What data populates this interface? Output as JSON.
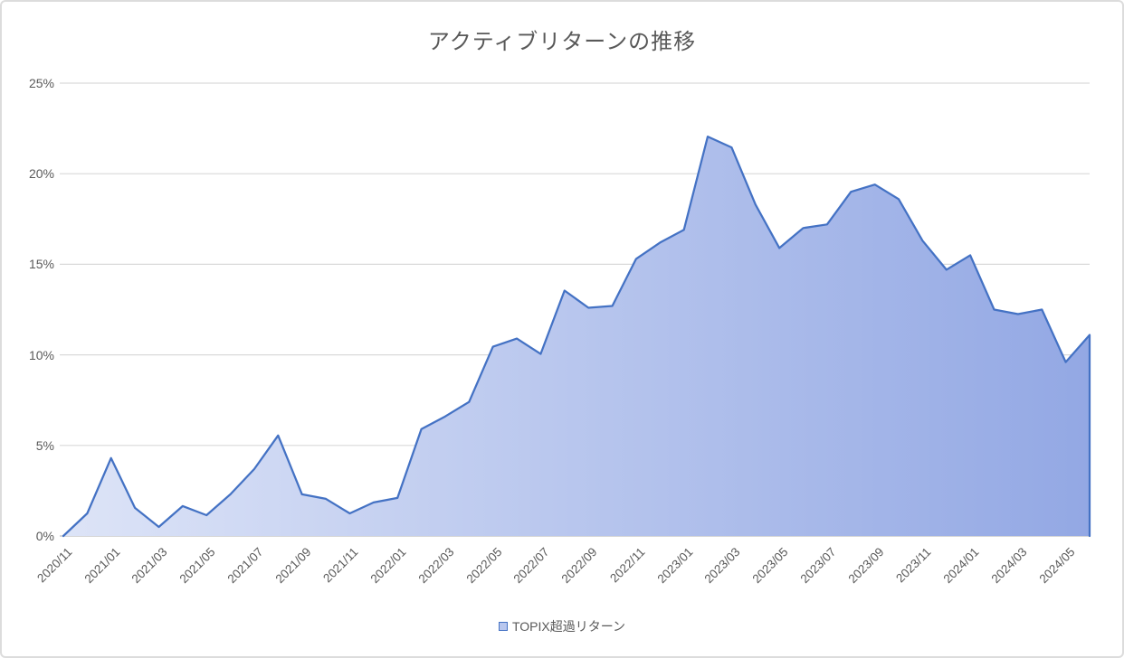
{
  "chart": {
    "title": "アクティブリターンの推移",
    "legend": {
      "label": "TOPIX超過リターン"
    },
    "colors": {
      "line": "#4472c4",
      "area_gradient_left": "#dde4f7",
      "area_gradient_right": "#93a8e4",
      "gridline": "#d9d9d9",
      "axis_line": "#c9c9c9",
      "text": "#595959",
      "legend_swatch_border": "#4472c4",
      "legend_swatch_fill": "#b9c7ee"
    }
  },
  "chart_data": {
    "type": "area",
    "title": "アクティブリターンの推移",
    "x": [
      "2020/11",
      "2020/12",
      "2021/01",
      "2021/02",
      "2021/03",
      "2021/04",
      "2021/05",
      "2021/06",
      "2021/07",
      "2021/08",
      "2021/09",
      "2021/10",
      "2021/11",
      "2021/12",
      "2022/01",
      "2022/02",
      "2022/03",
      "2022/04",
      "2022/05",
      "2022/06",
      "2022/07",
      "2022/08",
      "2022/09",
      "2022/10",
      "2022/11",
      "2022/12",
      "2023/01",
      "2023/02",
      "2023/03",
      "2023/04",
      "2023/05",
      "2023/06",
      "2023/07",
      "2023/08",
      "2023/09",
      "2023/10",
      "2023/11",
      "2023/12",
      "2024/01",
      "2024/02",
      "2024/03",
      "2024/04",
      "2024/05",
      "2024/06"
    ],
    "series": [
      {
        "name": "TOPIX超過リターン",
        "values": [
          0.0,
          1.25,
          4.3,
          1.55,
          0.5,
          1.65,
          1.15,
          2.3,
          3.7,
          5.55,
          2.3,
          2.05,
          1.25,
          1.85,
          2.1,
          5.9,
          6.6,
          7.4,
          10.45,
          10.9,
          10.05,
          13.55,
          12.6,
          12.7,
          15.3,
          16.2,
          16.9,
          22.05,
          21.45,
          18.3,
          15.9,
          17.0,
          17.2,
          19.0,
          19.4,
          18.6,
          16.3,
          14.7,
          15.5,
          12.5,
          12.25,
          12.5,
          9.6,
          11.1
        ]
      }
    ],
    "x_tick_labels": [
      "2020/11",
      "2021/01",
      "2021/03",
      "2021/05",
      "2021/07",
      "2021/09",
      "2021/11",
      "2022/01",
      "2022/03",
      "2022/05",
      "2022/07",
      "2022/09",
      "2022/11",
      "2023/01",
      "2023/03",
      "2023/05",
      "2023/07",
      "2023/09",
      "2023/11",
      "2024/01",
      "2024/03",
      "2024/05"
    ],
    "x_tick_every": 2,
    "y_tick_labels": [
      "0%",
      "5%",
      "10%",
      "15%",
      "20%",
      "25%"
    ],
    "y_unit": "%",
    "ylim": [
      0,
      25
    ],
    "grid": "horizontal-only",
    "legend_position": "bottom-center"
  }
}
